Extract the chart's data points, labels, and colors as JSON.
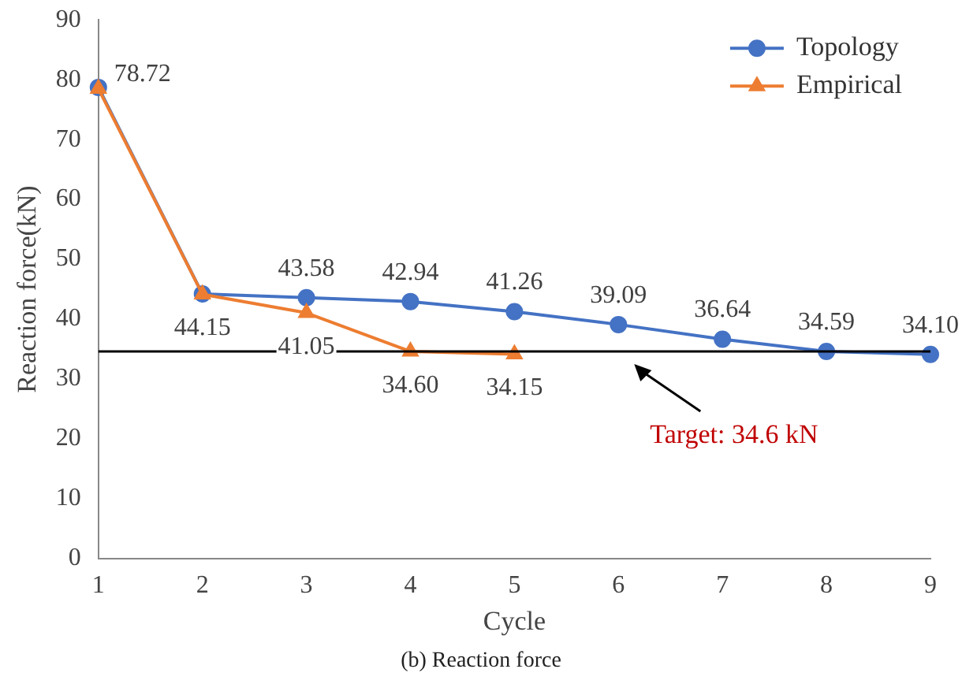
{
  "chart_data": {
    "type": "line",
    "xlabel": "Cycle",
    "ylabel": "Reaction force(kN)",
    "categories": [
      "1",
      "2",
      "3",
      "4",
      "5",
      "6",
      "7",
      "8",
      "9"
    ],
    "series": [
      {
        "name": "Topology",
        "color": "#4472c4",
        "marker": "circle",
        "values": [
          78.72,
          44.2,
          43.58,
          42.94,
          41.26,
          39.09,
          36.64,
          34.59,
          34.1
        ],
        "value_labels": [
          "78.72",
          null,
          "43.58",
          "42.94",
          "41.26",
          "39.09",
          "36.64",
          "34.59",
          "34.10"
        ]
      },
      {
        "name": "Empirical",
        "color": "#ed7d31",
        "marker": "triangle",
        "values": [
          78.5,
          44.15,
          41.05,
          34.6,
          34.15,
          null,
          null,
          null,
          null
        ],
        "value_labels": [
          null,
          "44.15",
          "41.05",
          "34.60",
          "34.15",
          null,
          null,
          null,
          null
        ]
      }
    ],
    "ylim": [
      0,
      90
    ],
    "yticks": [
      0,
      10,
      20,
      30,
      40,
      50,
      60,
      70,
      80,
      90
    ],
    "grid": false,
    "legend": "top right",
    "ref_lines": [
      {
        "axis": "y",
        "value": 34.6,
        "label": "Target: 34.6 kN",
        "color": "#000000"
      }
    ],
    "annotations": [
      "(b) Reaction force"
    ]
  }
}
